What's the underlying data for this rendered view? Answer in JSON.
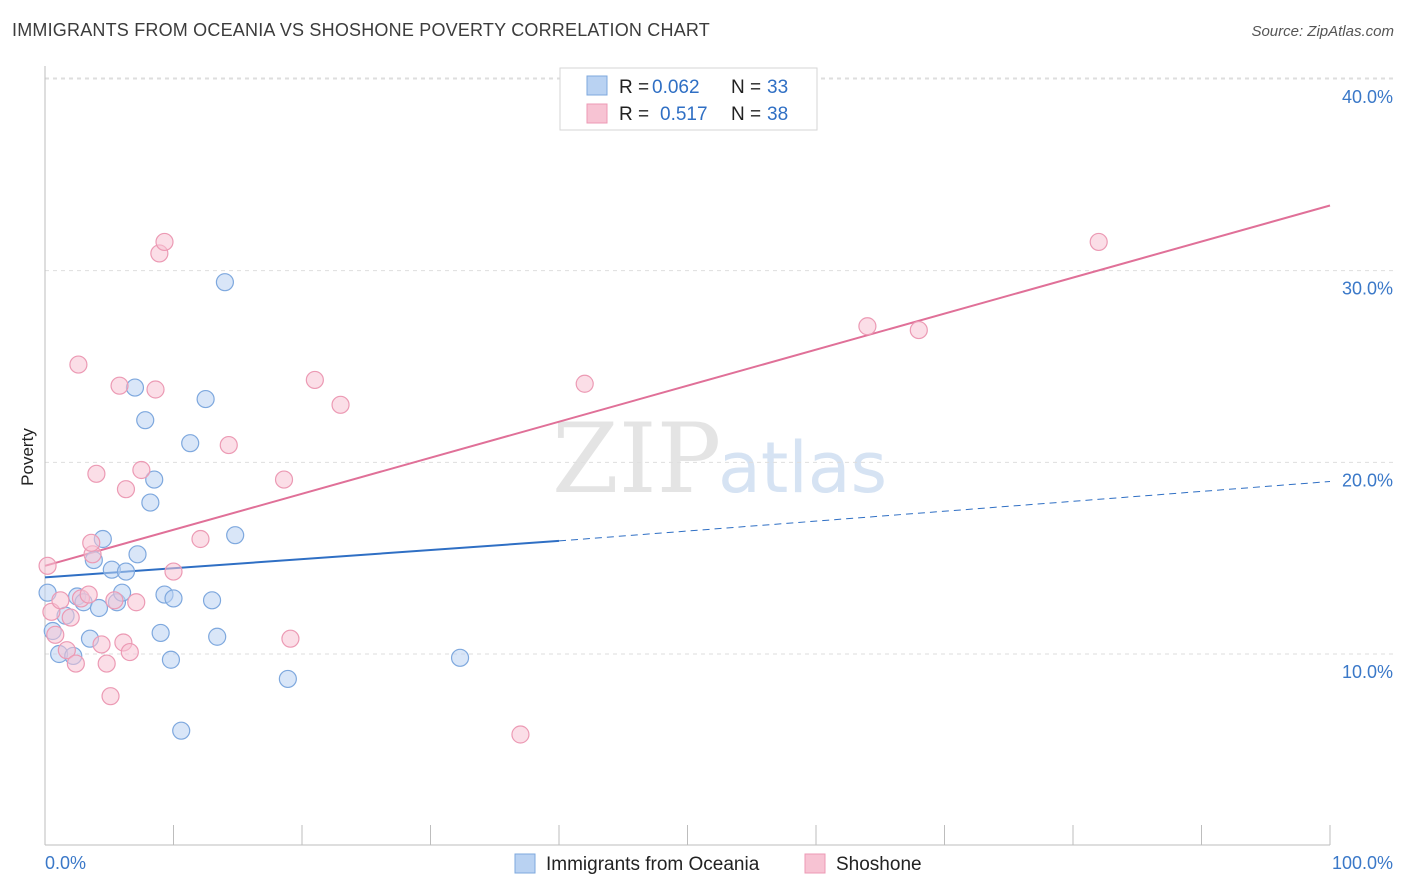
{
  "title": "IMMIGRANTS FROM OCEANIA VS SHOSHONE POVERTY CORRELATION CHART",
  "source": "Source: ZipAtlas.com",
  "watermark": {
    "zip": "ZIP",
    "atlas": "atlas"
  },
  "colors": {
    "blue_fill": "#b9d2f2",
    "blue_stroke": "#7ea8de",
    "blue_line": "#2f6fc4",
    "pink_fill": "#f7c3d3",
    "pink_stroke": "#ec9ab4",
    "pink_line": "#e07098",
    "grid": "#dedede",
    "axis_text": "#3a78c8"
  },
  "legend": {
    "r_label": "R =",
    "n_label": "N =",
    "rows": [
      {
        "series": "blue",
        "r": "0.062",
        "n": "33"
      },
      {
        "series": "pink",
        "r": "0.517",
        "n": "38"
      }
    ]
  },
  "chart_data": {
    "type": "scatter",
    "ylabel": "Poverty",
    "x_tick_labels": [
      "0.0%",
      "100.0%"
    ],
    "y_tick_labels": [
      "10.0%",
      "20.0%",
      "30.0%",
      "40.0%"
    ],
    "y_ticks": [
      10,
      20,
      30,
      40
    ],
    "xlim": [
      0,
      100
    ],
    "ylim": [
      0,
      41
    ],
    "grid": true,
    "series": [
      {
        "name": "Immigrants from Oceania",
        "color": "blue",
        "points": [
          [
            0.2,
            13.2
          ],
          [
            0.6,
            11.2
          ],
          [
            1.1,
            10.0
          ],
          [
            1.6,
            12.0
          ],
          [
            2.2,
            9.9
          ],
          [
            2.5,
            13.0
          ],
          [
            3.0,
            12.7
          ],
          [
            3.5,
            10.8
          ],
          [
            3.8,
            14.9
          ],
          [
            4.2,
            12.4
          ],
          [
            4.5,
            16.0
          ],
          [
            5.2,
            14.4
          ],
          [
            5.6,
            12.7
          ],
          [
            6.0,
            13.2
          ],
          [
            6.3,
            14.3
          ],
          [
            7.0,
            23.9
          ],
          [
            7.2,
            15.2
          ],
          [
            7.8,
            22.2
          ],
          [
            8.2,
            17.9
          ],
          [
            8.5,
            19.1
          ],
          [
            9.0,
            11.1
          ],
          [
            9.3,
            13.1
          ],
          [
            9.8,
            9.7
          ],
          [
            10.0,
            12.9
          ],
          [
            10.6,
            6.0
          ],
          [
            11.3,
            21.0
          ],
          [
            12.5,
            23.3
          ],
          [
            13.0,
            12.8
          ],
          [
            13.4,
            10.9
          ],
          [
            14.0,
            29.4
          ],
          [
            14.8,
            16.2
          ],
          [
            18.9,
            8.7
          ],
          [
            32.3,
            9.8
          ]
        ],
        "trend": {
          "x0": 0,
          "y0": 14.0,
          "x1": 40,
          "y1": 15.9,
          "dash_x1": 100,
          "dash_y1": 19.0
        }
      },
      {
        "name": "Shoshone",
        "color": "pink",
        "points": [
          [
            0.2,
            14.6
          ],
          [
            0.5,
            12.2
          ],
          [
            0.8,
            11.0
          ],
          [
            1.2,
            12.8
          ],
          [
            1.7,
            10.2
          ],
          [
            2.0,
            11.9
          ],
          [
            2.4,
            9.5
          ],
          [
            2.8,
            12.9
          ],
          [
            2.6,
            25.1
          ],
          [
            3.4,
            13.1
          ],
          [
            3.7,
            15.2
          ],
          [
            3.6,
            15.8
          ],
          [
            4.0,
            19.4
          ],
          [
            4.4,
            10.5
          ],
          [
            4.8,
            9.5
          ],
          [
            5.1,
            7.8
          ],
          [
            5.4,
            12.8
          ],
          [
            5.8,
            24.0
          ],
          [
            6.1,
            10.6
          ],
          [
            6.3,
            18.6
          ],
          [
            6.6,
            10.1
          ],
          [
            7.1,
            12.7
          ],
          [
            7.5,
            19.6
          ],
          [
            8.6,
            23.8
          ],
          [
            8.9,
            30.9
          ],
          [
            9.3,
            31.5
          ],
          [
            10.0,
            14.3
          ],
          [
            12.1,
            16.0
          ],
          [
            14.3,
            20.9
          ],
          [
            18.6,
            19.1
          ],
          [
            19.1,
            10.8
          ],
          [
            21.0,
            24.3
          ],
          [
            23.0,
            23.0
          ],
          [
            37.0,
            5.8
          ],
          [
            42.0,
            24.1
          ],
          [
            64.0,
            27.1
          ],
          [
            68.0,
            26.9
          ],
          [
            82.0,
            31.5
          ]
        ],
        "trend": {
          "x0": 0,
          "y0": 14.6,
          "x1": 100,
          "y1": 33.4
        }
      }
    ]
  }
}
